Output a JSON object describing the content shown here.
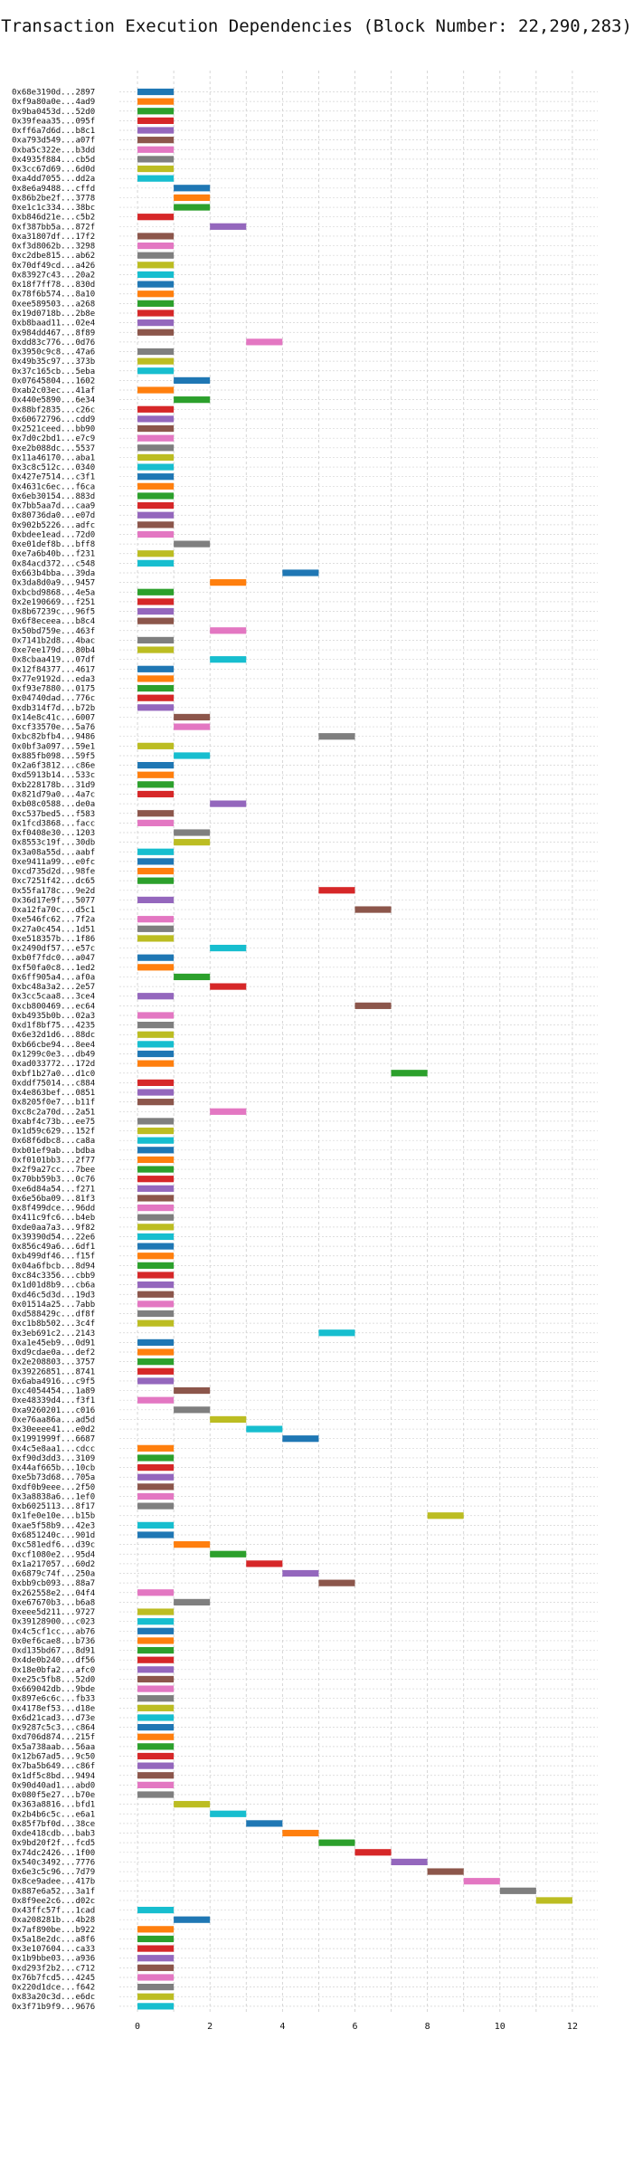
{
  "chart_data": {
    "type": "bar",
    "orientation": "horizontal-gantt",
    "title": "Transaction Execution Dependencies (Block Number: 22,290,283)",
    "xlabel": "",
    "ylabel": "",
    "xlim": [
      -0.5,
      12.7
    ],
    "xticks": [
      0,
      2,
      4,
      6,
      8,
      10,
      12
    ],
    "grid": true,
    "palette": [
      "#1f77b4",
      "#ff7f0e",
      "#2ca02c",
      "#d62728",
      "#9467bd",
      "#8c564b",
      "#e377c2",
      "#7f7f7f",
      "#bcbd22",
      "#17becf"
    ],
    "bar_width": 1,
    "rows": [
      {
        "label": "0x68e3190d...2897",
        "start": 0
      },
      {
        "label": "0xf9a80a0e...4ad9",
        "start": 0
      },
      {
        "label": "0x9ba0453d...52d0",
        "start": 0
      },
      {
        "label": "0x39feaa35...095f",
        "start": 0
      },
      {
        "label": "0xff6a7d6d...b8c1",
        "start": 0
      },
      {
        "label": "0xa793d549...a07f",
        "start": 0
      },
      {
        "label": "0xba5c322e...b3dd",
        "start": 0
      },
      {
        "label": "0x4935f884...cb5d",
        "start": 0
      },
      {
        "label": "0x3cc67d69...6d0d",
        "start": 0
      },
      {
        "label": "0xa4dd7055...dd2a",
        "start": 0
      },
      {
        "label": "0x8e6a9488...cffd",
        "start": 1
      },
      {
        "label": "0x86b2be2f...3778",
        "start": 1
      },
      {
        "label": "0xe1c1c334...38bc",
        "start": 1
      },
      {
        "label": "0xb846d21e...c5b2",
        "start": 0
      },
      {
        "label": "0xf387bb5a...872f",
        "start": 2
      },
      {
        "label": "0xa31807df...17f2",
        "start": 0
      },
      {
        "label": "0xf3d8062b...3298",
        "start": 0
      },
      {
        "label": "0xc2dbe815...ab62",
        "start": 0
      },
      {
        "label": "0x70df49cd...a426",
        "start": 0
      },
      {
        "label": "0x83927c43...20a2",
        "start": 0
      },
      {
        "label": "0x18f7ff78...830d",
        "start": 0
      },
      {
        "label": "0x78f6b574...8a10",
        "start": 0
      },
      {
        "label": "0xee589503...a268",
        "start": 0
      },
      {
        "label": "0x19d0718b...2b8e",
        "start": 0
      },
      {
        "label": "0xb8baad11...02e4",
        "start": 0
      },
      {
        "label": "0x984dd467...8f89",
        "start": 0
      },
      {
        "label": "0xdd83c776...0d76",
        "start": 3
      },
      {
        "label": "0x3950c9c8...47a6",
        "start": 0
      },
      {
        "label": "0x49b35c97...373b",
        "start": 0
      },
      {
        "label": "0x37c165cb...5eba",
        "start": 0
      },
      {
        "label": "0x07645804...1602",
        "start": 1
      },
      {
        "label": "0xab2c03ec...41af",
        "start": 0
      },
      {
        "label": "0x440e5890...6e34",
        "start": 1
      },
      {
        "label": "0x88bf2835...c26c",
        "start": 0
      },
      {
        "label": "0x60672796...cdd9",
        "start": 0
      },
      {
        "label": "0x2521ceed...bb90",
        "start": 0
      },
      {
        "label": "0x7d0c2bd1...e7c9",
        "start": 0
      },
      {
        "label": "0xe2b088dc...5537",
        "start": 0
      },
      {
        "label": "0x11a46170...aba1",
        "start": 0
      },
      {
        "label": "0x3c8c512c...0340",
        "start": 0
      },
      {
        "label": "0x427e7514...c3f1",
        "start": 0
      },
      {
        "label": "0x4631c6ec...f6ca",
        "start": 0
      },
      {
        "label": "0x6eb30154...883d",
        "start": 0
      },
      {
        "label": "0x7bb5aa7d...caa9",
        "start": 0
      },
      {
        "label": "0x80736da0...e07d",
        "start": 0
      },
      {
        "label": "0x902b5226...adfc",
        "start": 0
      },
      {
        "label": "0xbdee1ead...72d0",
        "start": 0
      },
      {
        "label": "0xe01def8b...bff8",
        "start": 1
      },
      {
        "label": "0xe7a6b40b...f231",
        "start": 0
      },
      {
        "label": "0x84acd372...c548",
        "start": 0
      },
      {
        "label": "0x663b4bba...39da",
        "start": 4
      },
      {
        "label": "0x3da8d0a9...9457",
        "start": 2
      },
      {
        "label": "0xbcbd9868...4e5a",
        "start": 0
      },
      {
        "label": "0x2e190669...f251",
        "start": 0
      },
      {
        "label": "0x8b67239c...96f5",
        "start": 0
      },
      {
        "label": "0x6f8eceea...b8c4",
        "start": 0
      },
      {
        "label": "0x50bd759e...463f",
        "start": 2
      },
      {
        "label": "0x7141b2d8...4bac",
        "start": 0
      },
      {
        "label": "0xe7ee179d...80b4",
        "start": 0
      },
      {
        "label": "0x8cbaa419...07df",
        "start": 2
      },
      {
        "label": "0x12f84377...4617",
        "start": 0
      },
      {
        "label": "0x77e9192d...eda3",
        "start": 0
      },
      {
        "label": "0xf93e7880...0175",
        "start": 0
      },
      {
        "label": "0x04740dad...776c",
        "start": 0
      },
      {
        "label": "0xdb314f7d...b72b",
        "start": 0
      },
      {
        "label": "0x14e8c41c...6007",
        "start": 1
      },
      {
        "label": "0xcf33570e...5a76",
        "start": 1
      },
      {
        "label": "0xbc82bfb4...9486",
        "start": 5
      },
      {
        "label": "0x0bf3a097...59e1",
        "start": 0
      },
      {
        "label": "0x885fb098...59f5",
        "start": 1
      },
      {
        "label": "0x2a6f3812...c86e",
        "start": 0
      },
      {
        "label": "0xd5913b14...533c",
        "start": 0
      },
      {
        "label": "0xb228178b...31d9",
        "start": 0
      },
      {
        "label": "0x821d79a0...4a7c",
        "start": 0
      },
      {
        "label": "0xb08c0588...de0a",
        "start": 2
      },
      {
        "label": "0xc537bed5...f583",
        "start": 0
      },
      {
        "label": "0x1fcd3868...facc",
        "start": 0
      },
      {
        "label": "0xf0408e30...1203",
        "start": 1
      },
      {
        "label": "0x8553c19f...30db",
        "start": 1
      },
      {
        "label": "0x3a08a55d...aabf",
        "start": 0
      },
      {
        "label": "0xe9411a99...e0fc",
        "start": 0
      },
      {
        "label": "0xcd735d2d...98fe",
        "start": 0
      },
      {
        "label": "0xc7251f42...dc65",
        "start": 0
      },
      {
        "label": "0x55fa178c...9e2d",
        "start": 5
      },
      {
        "label": "0x36d17e9f...5077",
        "start": 0
      },
      {
        "label": "0xa12fa70c...d5c1",
        "start": 6
      },
      {
        "label": "0xe546fc62...7f2a",
        "start": 0
      },
      {
        "label": "0x27a0c454...1d51",
        "start": 0
      },
      {
        "label": "0xe518357b...1f86",
        "start": 0
      },
      {
        "label": "0x2490df57...e57c",
        "start": 2
      },
      {
        "label": "0xb0f7fdc0...a047",
        "start": 0
      },
      {
        "label": "0xf50fa0c8...1ed2",
        "start": 0
      },
      {
        "label": "0x6ff905a4...af0a",
        "start": 1
      },
      {
        "label": "0xbc48a3a2...2e57",
        "start": 2
      },
      {
        "label": "0x3cc5caa8...3ce4",
        "start": 0
      },
      {
        "label": "0xcb800469...ec64",
        "start": 6
      },
      {
        "label": "0xb4935b0b...02a3",
        "start": 0
      },
      {
        "label": "0xd1f8bf75...4235",
        "start": 0
      },
      {
        "label": "0x6e32d1d6...88dc",
        "start": 0
      },
      {
        "label": "0xb66cbe94...8ee4",
        "start": 0
      },
      {
        "label": "0x1299c0e3...db49",
        "start": 0
      },
      {
        "label": "0xad033772...172d",
        "start": 0
      },
      {
        "label": "0xbf1b27a0...d1c0",
        "start": 7
      },
      {
        "label": "0xddf75014...c884",
        "start": 0
      },
      {
        "label": "0x4e863bef...0851",
        "start": 0
      },
      {
        "label": "0x8205f0e7...b11f",
        "start": 0
      },
      {
        "label": "0xc8c2a70d...2a51",
        "start": 2
      },
      {
        "label": "0xabf4c73b...ee75",
        "start": 0
      },
      {
        "label": "0x1d59c629...152f",
        "start": 0
      },
      {
        "label": "0x68f6dbc8...ca8a",
        "start": 0
      },
      {
        "label": "0xb01ef9ab...bdba",
        "start": 0
      },
      {
        "label": "0xf0101bb3...2f77",
        "start": 0
      },
      {
        "label": "0x2f9a27cc...7bee",
        "start": 0
      },
      {
        "label": "0x70bb59b3...0c76",
        "start": 0
      },
      {
        "label": "0xe6d84a54...f271",
        "start": 0
      },
      {
        "label": "0x6e56ba09...81f3",
        "start": 0
      },
      {
        "label": "0x8f499dce...96dd",
        "start": 0
      },
      {
        "label": "0x411c9fc6...b4eb",
        "start": 0
      },
      {
        "label": "0xde0aa7a3...9f82",
        "start": 0
      },
      {
        "label": "0x39390d54...22e6",
        "start": 0
      },
      {
        "label": "0x856c49a6...6df1",
        "start": 0
      },
      {
        "label": "0xb499df46...f15f",
        "start": 0
      },
      {
        "label": "0x04a6fbcb...8d94",
        "start": 0
      },
      {
        "label": "0xc84c3356...cbb9",
        "start": 0
      },
      {
        "label": "0x1d01d8b9...cb6a",
        "start": 0
      },
      {
        "label": "0xd46c5d3d...19d3",
        "start": 0
      },
      {
        "label": "0x01514a25...7abb",
        "start": 0
      },
      {
        "label": "0xd588429c...df8f",
        "start": 0
      },
      {
        "label": "0xc1b8b502...3c4f",
        "start": 0
      },
      {
        "label": "0x3eb691c2...2143",
        "start": 5
      },
      {
        "label": "0xa1e45eb9...0d91",
        "start": 0
      },
      {
        "label": "0xd9cdae0a...def2",
        "start": 0
      },
      {
        "label": "0x2e208803...3757",
        "start": 0
      },
      {
        "label": "0x39226851...8741",
        "start": 0
      },
      {
        "label": "0x6aba4916...c9f5",
        "start": 0
      },
      {
        "label": "0xc4054454...1a89",
        "start": 1
      },
      {
        "label": "0xe48339d4...f3f1",
        "start": 0
      },
      {
        "label": "0xa9260201...c016",
        "start": 1
      },
      {
        "label": "0xe76aa86a...ad5d",
        "start": 2
      },
      {
        "label": "0x30eeee41...e0d2",
        "start": 3
      },
      {
        "label": "0x1991999f...6687",
        "start": 4
      },
      {
        "label": "0x4c5e8aa1...cdcc",
        "start": 0
      },
      {
        "label": "0xf90d3dd3...3109",
        "start": 0
      },
      {
        "label": "0x44af665b...10cb",
        "start": 0
      },
      {
        "label": "0xe5b73d68...705a",
        "start": 0
      },
      {
        "label": "0xdf0b9eee...2f50",
        "start": 0
      },
      {
        "label": "0x3a8838a6...1ef0",
        "start": 0
      },
      {
        "label": "0xb6025113...8f17",
        "start": 0
      },
      {
        "label": "0x1fe0e10e...b15b",
        "start": 8
      },
      {
        "label": "0xae5f58b9...42e3",
        "start": 0
      },
      {
        "label": "0x6851240c...901d",
        "start": 0
      },
      {
        "label": "0xc581edf6...d39c",
        "start": 1
      },
      {
        "label": "0xcf1080e2...95d4",
        "start": 2
      },
      {
        "label": "0x1a217057...60d2",
        "start": 3
      },
      {
        "label": "0x6879c74f...250a",
        "start": 4
      },
      {
        "label": "0xbb9cb093...88a7",
        "start": 5
      },
      {
        "label": "0x262558e2...04f4",
        "start": 0
      },
      {
        "label": "0xe67670b3...b6a8",
        "start": 1
      },
      {
        "label": "0xeee5d211...9727",
        "start": 0
      },
      {
        "label": "0x39128900...c023",
        "start": 0
      },
      {
        "label": "0x4c5cf1cc...ab76",
        "start": 0
      },
      {
        "label": "0x0ef6cae8...b736",
        "start": 0
      },
      {
        "label": "0xd135bd67...8d91",
        "start": 0
      },
      {
        "label": "0x4de0b240...df56",
        "start": 0
      },
      {
        "label": "0x18e0bfa2...afc0",
        "start": 0
      },
      {
        "label": "0xe25c5fb8...52d0",
        "start": 0
      },
      {
        "label": "0x669042db...9bde",
        "start": 0
      },
      {
        "label": "0x897e6c6c...fb33",
        "start": 0
      },
      {
        "label": "0x4178ef53...d18e",
        "start": 0
      },
      {
        "label": "0x6d21cad3...d73e",
        "start": 0
      },
      {
        "label": "0x9287c5c3...c864",
        "start": 0
      },
      {
        "label": "0xd706d874...215f",
        "start": 0
      },
      {
        "label": "0x5a738aab...56aa",
        "start": 0
      },
      {
        "label": "0x12b67ad5...9c50",
        "start": 0
      },
      {
        "label": "0x7ba5b649...c86f",
        "start": 0
      },
      {
        "label": "0x1df5c8bd...9494",
        "start": 0
      },
      {
        "label": "0x90d40ad1...abd0",
        "start": 0
      },
      {
        "label": "0x080f5e27...b70e",
        "start": 0
      },
      {
        "label": "0x363a8816...bfd1",
        "start": 1
      },
      {
        "label": "0x2b4b6c5c...e6a1",
        "start": 2
      },
      {
        "label": "0x85f7bf0d...38ce",
        "start": 3
      },
      {
        "label": "0xde418cdb...bab3",
        "start": 4
      },
      {
        "label": "0x9bd20f2f...fcd5",
        "start": 5
      },
      {
        "label": "0x74dc2426...1f00",
        "start": 6
      },
      {
        "label": "0x540c3492...7776",
        "start": 7
      },
      {
        "label": "0x6e3c5c96...7d79",
        "start": 8
      },
      {
        "label": "0x8ce9adee...417b",
        "start": 9
      },
      {
        "label": "0x887e6a52...3a1f",
        "start": 10
      },
      {
        "label": "0x8f9ee2c6...d02c",
        "start": 11
      },
      {
        "label": "0x43ffc57f...1cad",
        "start": 0
      },
      {
        "label": "0xa208281b...4b28",
        "start": 1
      },
      {
        "label": "0x7af890be...b922",
        "start": 0
      },
      {
        "label": "0x5a18e2dc...a8f6",
        "start": 0
      },
      {
        "label": "0x3e107604...ca33",
        "start": 0
      },
      {
        "label": "0x1b9bbe03...a936",
        "start": 0
      },
      {
        "label": "0xd293f2b2...c712",
        "start": 0
      },
      {
        "label": "0x76b7fcd5...4245",
        "start": 0
      },
      {
        "label": "0x220d1dce...f642",
        "start": 0
      },
      {
        "label": "0x83a20c3d...e6dc",
        "start": 0
      },
      {
        "label": "0x3f71b9f9...9676",
        "start": 0
      }
    ]
  }
}
